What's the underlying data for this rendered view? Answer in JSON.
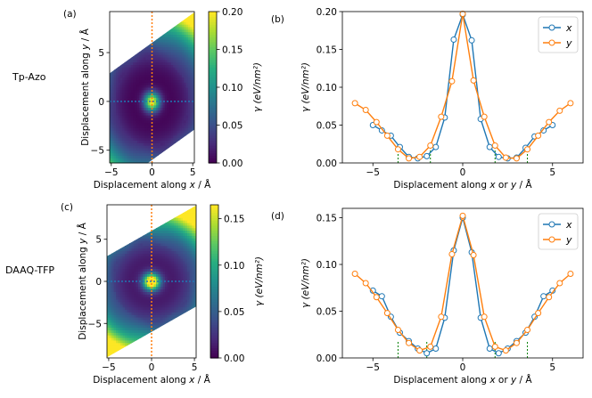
{
  "row_labels": [
    "Tp-Azo",
    "DAAQ-TFP"
  ],
  "colors": {
    "x_series": "#1f77b4",
    "y_series": "#ff7f0e",
    "vline": "#ff7f0e",
    "hline": "#1f77b4"
  },
  "chart_data": [
    {
      "panel": "(a)",
      "type": "heatmap",
      "xlabel": "Displacement along x / Å",
      "ylabel": "Displacement along y / Å",
      "xlim": [
        -5.2,
        5.2
      ],
      "ylim": [
        -6.3,
        9.2
      ],
      "xticks": [
        -5,
        0,
        5
      ],
      "yticks": [
        -5,
        0,
        5
      ],
      "region": "rhombus between y = 0.6x ± 6 for x in [-5.2, 5.2]",
      "colorbar": {
        "label": "γ (eV/nm²)",
        "min": 0.0,
        "max": 0.2,
        "ticks": [
          0.0,
          0.05,
          0.1,
          0.15,
          0.2
        ],
        "tick_labels": [
          "0.00",
          "0.05",
          "0.10",
          "0.15",
          "0.20"
        ]
      },
      "annotations": [
        "dotted vertical line at x = 0",
        "dotted horizontal line at y = 0"
      ]
    },
    {
      "panel": "(b)",
      "type": "line",
      "xlabel": "Displacement along x or y / Å",
      "ylabel": "γ (eV/nm²)",
      "xlim": [
        -6.7,
        6.7
      ],
      "ylim": [
        0,
        0.2
      ],
      "xticks": [
        -5,
        0,
        5
      ],
      "xtick_labels": [
        "−5",
        "0",
        "5"
      ],
      "yticks": [
        0,
        0.05,
        0.1,
        0.15,
        0.2
      ],
      "ytick_labels": [
        "0.00",
        "0.05",
        "0.10",
        "0.15",
        "0.20"
      ],
      "legend": [
        "x",
        "y"
      ],
      "legend_position": "top-right",
      "series": [
        {
          "name": "x",
          "x": [
            -5.0,
            -4.5,
            -4.0,
            -3.5,
            -3.0,
            -2.5,
            -2.0,
            -1.5,
            -1.0,
            -0.5,
            0.0,
            0.5,
            1.0,
            1.5,
            2.0,
            2.5,
            3.0,
            3.5,
            4.0,
            4.5,
            5.0
          ],
          "values": [
            0.05,
            0.043,
            0.036,
            0.021,
            0.008,
            0.006,
            0.009,
            0.021,
            0.06,
            0.163,
            0.196,
            0.162,
            0.058,
            0.021,
            0.008,
            0.006,
            0.007,
            0.02,
            0.035,
            0.043,
            0.05
          ]
        },
        {
          "name": "y",
          "x": [
            -6.0,
            -5.4,
            -4.8,
            -4.2,
            -3.6,
            -3.0,
            -2.4,
            -1.8,
            -1.2,
            -0.6,
            0.0,
            0.6,
            1.2,
            1.8,
            2.4,
            3.0,
            3.6,
            4.2,
            4.8,
            5.4,
            6.0
          ],
          "values": [
            0.079,
            0.07,
            0.054,
            0.036,
            0.018,
            0.006,
            0.008,
            0.023,
            0.061,
            0.108,
            0.197,
            0.109,
            0.061,
            0.023,
            0.007,
            0.006,
            0.018,
            0.036,
            0.054,
            0.069,
            0.079
          ]
        }
      ],
      "vlines": [
        {
          "x": -3.6,
          "color": "green"
        },
        {
          "x": -1.8,
          "color": "green"
        },
        {
          "x": 1.8,
          "color": "green"
        },
        {
          "x": 3.6,
          "color": "green"
        }
      ]
    },
    {
      "panel": "(c)",
      "type": "heatmap",
      "xlabel": "Displacement along x / Å",
      "ylabel": "Displacement along y / Å",
      "xlim": [
        -5.2,
        5.2
      ],
      "ylim": [
        -9.1,
        9.1
      ],
      "xticks": [
        -5,
        0,
        5
      ],
      "yticks": [
        -5,
        0,
        5
      ],
      "region": "rhombus between y = 0.58x ± 6 for x in [-5.2, 5.2]",
      "colorbar": {
        "label": "γ (eV/nm²)",
        "min": 0.0,
        "max": 0.165,
        "ticks": [
          0.0,
          0.05,
          0.1,
          0.15
        ],
        "tick_labels": [
          "0.00",
          "0.05",
          "0.10",
          "0.15"
        ]
      },
      "annotations": [
        "dotted vertical line at x = 0",
        "dotted horizontal line at y = 0"
      ]
    },
    {
      "panel": "(d)",
      "type": "line",
      "xlabel": "Displacement along x or y / Å",
      "ylabel": "γ (eV/nm²)",
      "xlim": [
        -6.7,
        6.7
      ],
      "ylim": [
        0,
        0.16
      ],
      "xticks": [
        -5,
        0,
        5
      ],
      "xtick_labels": [
        "−5",
        "0",
        "5"
      ],
      "yticks": [
        0,
        0.05,
        0.1,
        0.15
      ],
      "ytick_labels": [
        "0.00",
        "0.05",
        "0.10",
        "0.15"
      ],
      "legend": [
        "x",
        "y"
      ],
      "legend_position": "top-right",
      "series": [
        {
          "name": "x",
          "x": [
            -5.0,
            -4.5,
            -4.0,
            -3.5,
            -3.0,
            -2.5,
            -2.0,
            -1.5,
            -1.0,
            -0.5,
            0.0,
            0.5,
            1.0,
            1.5,
            2.0,
            2.5,
            3.0,
            3.5,
            4.0,
            4.5,
            5.0
          ],
          "values": [
            0.072,
            0.066,
            0.044,
            0.027,
            0.018,
            0.01,
            0.005,
            0.01,
            0.043,
            0.115,
            0.15,
            0.113,
            0.043,
            0.01,
            0.005,
            0.01,
            0.018,
            0.027,
            0.044,
            0.066,
            0.072
          ]
        },
        {
          "name": "y",
          "x": [
            -6.0,
            -5.4,
            -4.8,
            -4.2,
            -3.6,
            -3.0,
            -2.4,
            -1.8,
            -1.2,
            -0.6,
            0.0,
            0.6,
            1.2,
            1.8,
            2.4,
            3.0,
            3.6,
            4.2,
            4.8,
            5.4,
            6.0
          ],
          "values": [
            0.09,
            0.08,
            0.065,
            0.048,
            0.03,
            0.016,
            0.008,
            0.012,
            0.044,
            0.111,
            0.152,
            0.11,
            0.044,
            0.012,
            0.008,
            0.016,
            0.03,
            0.048,
            0.065,
            0.08,
            0.09
          ]
        }
      ],
      "vlines": [
        {
          "x": -3.6,
          "color": "green"
        },
        {
          "x": -2.0,
          "color": "green"
        },
        {
          "x": 1.8,
          "color": "green"
        },
        {
          "x": 3.6,
          "color": "green"
        }
      ]
    }
  ]
}
